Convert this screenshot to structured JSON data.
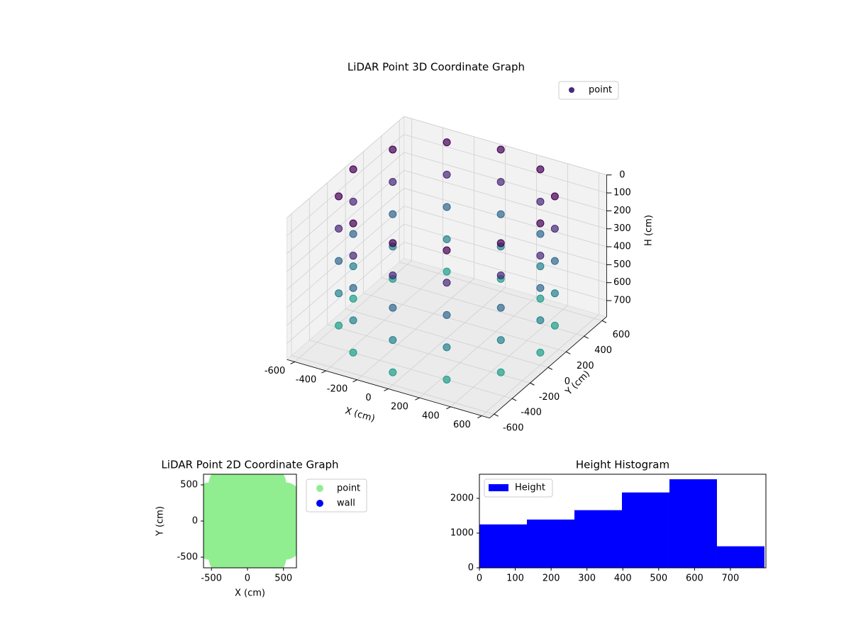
{
  "chart_data": [
    {
      "type": "scatter3d",
      "title": "LiDAR Point 3D Coordinate Graph",
      "xlabel": "X (cm)",
      "ylabel": "Y (cm)",
      "zlabel": "H (cm)",
      "series": [
        {
          "name": "point",
          "colormap": "viridis",
          "x": [
            600,
            520,
            300,
            0,
            -300,
            -520,
            -600,
            -520,
            -300,
            0,
            300,
            520,
            600,
            520,
            300,
            0,
            -300,
            -520,
            -600,
            -520,
            -300,
            0,
            300,
            520,
            600,
            520,
            300,
            0,
            -300,
            -520,
            -600,
            -520,
            -300,
            0,
            300,
            520,
            600,
            520,
            300,
            0,
            -300,
            -520,
            -600,
            -520,
            -300,
            0,
            300,
            520,
            600,
            520,
            300,
            0,
            -300,
            -520,
            -600,
            -520,
            -300,
            0,
            300,
            520
          ],
          "y": [
            0,
            300,
            520,
            600,
            520,
            300,
            0,
            -300,
            -520,
            -600,
            -520,
            -300,
            0,
            300,
            520,
            600,
            520,
            300,
            0,
            -300,
            -520,
            -600,
            -520,
            -300,
            0,
            300,
            520,
            600,
            520,
            300,
            0,
            -300,
            -520,
            -600,
            -520,
            -300,
            0,
            300,
            520,
            600,
            520,
            300,
            0,
            -300,
            -520,
            -600,
            -520,
            -300,
            0,
            300,
            520,
            600,
            520,
            300,
            0,
            -300,
            -520,
            -600,
            -520,
            -300
          ],
          "z": [
            0,
            0,
            0,
            0,
            0,
            0,
            0,
            0,
            0,
            0,
            0,
            0,
            180,
            180,
            180,
            180,
            180,
            180,
            180,
            180,
            180,
            180,
            180,
            180,
            360,
            360,
            360,
            360,
            360,
            360,
            360,
            360,
            360,
            360,
            360,
            360,
            540,
            540,
            540,
            540,
            540,
            540,
            540,
            540,
            540,
            540,
            540,
            540,
            720,
            720,
            720,
            720,
            720,
            720,
            720,
            720,
            720,
            720,
            720,
            720
          ]
        }
      ],
      "xlim": [
        -650,
        650
      ],
      "ylim": [
        -650,
        650
      ],
      "zlim": [
        0,
        790
      ],
      "z_inverted": true,
      "xticks": [
        -600,
        -400,
        -200,
        0,
        200,
        400,
        600
      ],
      "yticks": [
        -600,
        -400,
        -200,
        0,
        200,
        400,
        600
      ],
      "zticks": [
        0,
        100,
        200,
        300,
        400,
        500,
        600,
        700
      ],
      "legend": "upper right"
    },
    {
      "type": "scatter",
      "title": "LiDAR Point 2D Coordinate Graph",
      "xlabel": "X (cm)",
      "ylabel": "Y (cm)",
      "series": [
        {
          "name": "point",
          "color": "#90ee90",
          "x": [
            600,
            520,
            300,
            0,
            -300,
            -520,
            -600,
            -520,
            -300,
            0,
            300,
            520,
            300,
            150,
            -150,
            -300,
            -150,
            150,
            0
          ],
          "y": [
            0,
            300,
            520,
            600,
            520,
            300,
            0,
            -300,
            -520,
            -600,
            -520,
            -300,
            0,
            260,
            260,
            0,
            -260,
            -260,
            0
          ]
        },
        {
          "name": "wall",
          "color": "#0000ff",
          "x": [],
          "y": []
        }
      ],
      "xlim": [
        -610,
        680
      ],
      "ylim": [
        -647,
        647
      ],
      "xticks": [
        -500,
        0,
        500
      ],
      "yticks": [
        -500,
        0,
        500
      ],
      "legend": "outside right"
    },
    {
      "type": "histogram",
      "title": "Height Histogram",
      "series": [
        {
          "name": "Height",
          "color": "#0000ff",
          "values": [
            1250,
            1390,
            1660,
            2170,
            2550,
            620
          ]
        }
      ],
      "bins": [
        0,
        132.5,
        265,
        397.5,
        530,
        662.5,
        795
      ],
      "xlim": [
        0,
        799
      ],
      "ylim": [
        0,
        2694
      ],
      "xticks": [
        0,
        100,
        200,
        300,
        400,
        500,
        600,
        700
      ],
      "yticks": [
        0,
        1000,
        2000
      ],
      "legend": "upper left"
    }
  ]
}
